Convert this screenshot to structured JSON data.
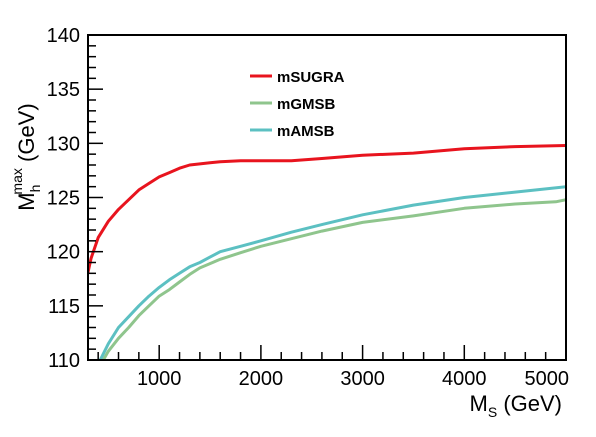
{
  "chart_data": {
    "type": "line",
    "xlabel_main": "M",
    "xlabel_sub": "S",
    "xlabel_unit": " (GeV)",
    "ylabel_main": "M",
    "ylabel_sub": "h",
    "ylabel_sup": "max",
    "ylabel_unit": " (GeV)",
    "xlim": [
      300,
      5000
    ],
    "ylim": [
      110,
      140
    ],
    "xticks": [
      1000,
      2000,
      3000,
      4000,
      5000
    ],
    "yticks": [
      110,
      115,
      120,
      125,
      130,
      135,
      140
    ],
    "grid": false,
    "legend_position": "top-center",
    "series": [
      {
        "name": "mSUGRA",
        "color": "#e8141e",
        "x": [
          300,
          330,
          400,
          500,
          600,
          700,
          800,
          900,
          1000,
          1100,
          1200,
          1300,
          1400,
          1500,
          1600,
          1800,
          2000,
          2300,
          2600,
          3000,
          3500,
          4000,
          4500,
          5000
        ],
        "y": [
          118.1,
          119.4,
          121.3,
          122.8,
          123.9,
          124.8,
          125.7,
          126.3,
          126.9,
          127.3,
          127.7,
          128.0,
          128.1,
          128.2,
          128.3,
          128.4,
          128.4,
          128.4,
          128.6,
          128.9,
          129.1,
          129.5,
          129.7,
          129.8
        ]
      },
      {
        "name": "mGMSB",
        "color": "#8fc58d",
        "x": [
          450,
          500,
          600,
          700,
          800,
          900,
          1000,
          1100,
          1200,
          1300,
          1400,
          1500,
          1600,
          1800,
          2000,
          2300,
          2600,
          3000,
          3500,
          4000,
          4500,
          4900,
          5000
        ],
        "y": [
          110.0,
          110.8,
          112.0,
          113.0,
          114.1,
          115.0,
          115.9,
          116.5,
          117.2,
          117.9,
          118.5,
          118.9,
          119.3,
          119.9,
          120.5,
          121.2,
          121.9,
          122.7,
          123.3,
          124.0,
          124.4,
          124.6,
          124.8
        ]
      },
      {
        "name": "mAMSB",
        "color": "#5cc0c2",
        "x": [
          420,
          500,
          600,
          700,
          800,
          900,
          1000,
          1100,
          1200,
          1300,
          1400,
          1500,
          1600,
          1800,
          2000,
          2300,
          2600,
          3000,
          3500,
          4000,
          4500,
          5000
        ],
        "y": [
          110.0,
          111.5,
          113.0,
          114.0,
          115.0,
          115.9,
          116.7,
          117.4,
          118.0,
          118.6,
          119.0,
          119.5,
          120.0,
          120.5,
          121.0,
          121.8,
          122.5,
          123.4,
          124.3,
          125.0,
          125.5,
          126.0
        ]
      }
    ]
  }
}
